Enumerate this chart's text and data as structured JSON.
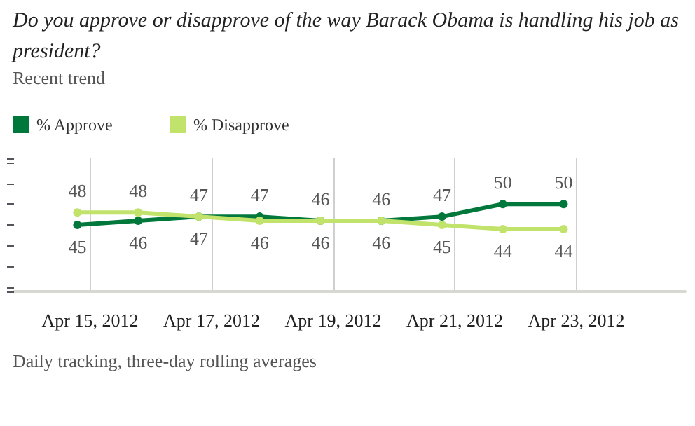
{
  "chart_data": {
    "type": "line",
    "title": "Do you approve or disapprove of the way Barack Obama is handling his job as president?",
    "subtitle": "Recent trend",
    "x": [
      "2012-04-14T19:00",
      "2012-04-15T19:00",
      "2012-04-16T19:00",
      "2012-04-17T19:00",
      "2012-04-18T19:00",
      "2012-04-19T19:00",
      "2012-04-20T19:00",
      "2012-04-21T19:00",
      "2012-04-22T19:00"
    ],
    "series": [
      {
        "name": "% Approve",
        "color": "#00783c",
        "values": [
          45,
          46,
          47,
          47,
          46,
          46,
          47,
          50,
          50
        ]
      },
      {
        "name": "% Disapprove",
        "color": "#c2e36b",
        "values": [
          48,
          48,
          47,
          46,
          46,
          46,
          45,
          44,
          44
        ]
      }
    ],
    "xlim": [
      "2012-04-13T18:00",
      "2012-04-24T19:00"
    ],
    "xticks": [
      {
        "value": "2012-04-15",
        "label": "Apr 15, 2012"
      },
      {
        "value": "2012-04-17",
        "label": "Apr 17, 2012"
      },
      {
        "value": "2012-04-19",
        "label": "Apr 19, 2012"
      },
      {
        "value": "2012-04-21",
        "label": "Apr 21, 2012"
      },
      {
        "value": "2012-04-23",
        "label": "Apr 23, 2012"
      }
    ],
    "ylim": [
      29,
      61
    ],
    "tick_labels": "x",
    "grid": "x",
    "legend": "top left",
    "marker": "circle",
    "line_style": "solid",
    "data_labels": true,
    "annotations": [
      "Daily tracking, three-day rolling averages"
    ]
  }
}
